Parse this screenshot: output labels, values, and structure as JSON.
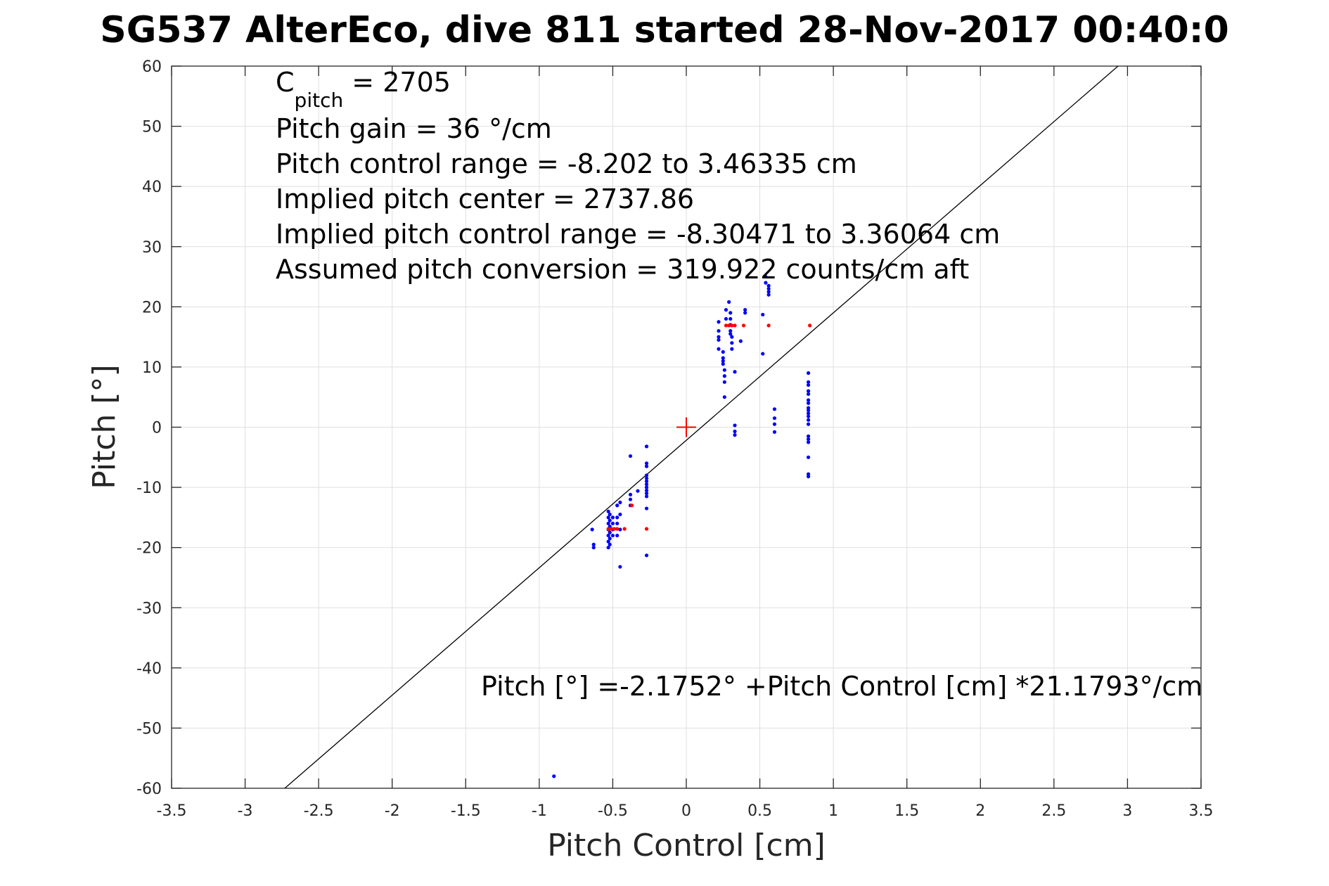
{
  "chart_data": {
    "type": "scatter",
    "title": "SG537 AlterEco, dive 811 started 28-Nov-2017 00:40:0",
    "xlabel": "Pitch Control [cm]",
    "ylabel": "Pitch [°]",
    "xlim": [
      -3.5,
      3.5
    ],
    "ylim": [
      -60,
      60
    ],
    "xticks": [
      -3.5,
      -3,
      -2.5,
      -2,
      -1.5,
      -1,
      -0.5,
      0,
      0.5,
      1,
      1.5,
      2,
      2.5,
      3,
      3.5
    ],
    "xtick_labels": [
      "-3.5",
      "-3",
      "-2.5",
      "-2",
      "-1.5",
      "-1",
      "-0.5",
      "0",
      "0.5",
      "1",
      "1.5",
      "2",
      "2.5",
      "3",
      "3.5"
    ],
    "yticks": [
      -60,
      -50,
      -40,
      -30,
      -20,
      -10,
      0,
      10,
      20,
      30,
      40,
      50,
      60
    ],
    "ytick_labels": [
      "-60",
      "-50",
      "-40",
      "-30",
      "-20",
      "-10",
      "0",
      "10",
      "20",
      "30",
      "40",
      "50",
      "60"
    ],
    "grid": true,
    "annotations": {
      "c_pitch_main": "C",
      "c_pitch_sub": "pitch",
      "c_pitch_value": " = 2705",
      "lines": [
        "Pitch gain = 36 °/cm",
        "Pitch control range = -8.202 to 3.46335 cm",
        "Implied pitch center = 2737.86",
        "Implied pitch control range = -8.30471 to 3.36064 cm",
        "Assumed pitch conversion = 319.922 counts/cm aft"
      ],
      "fit_equation": "Pitch [°] =-2.1752° +Pitch Control [cm] *21.1793°/cm"
    },
    "fit_line": {
      "intercept": -2.1752,
      "slope": 21.1793,
      "color": "#000000"
    },
    "center_marker": {
      "x": 0,
      "y": 0,
      "color": "#ff0000"
    },
    "series": [
      {
        "color": "#0000ff",
        "points": [
          [
            -0.9,
            -58
          ],
          [
            -0.63,
            -19.5
          ],
          [
            -0.63,
            -20
          ],
          [
            -0.64,
            -17
          ],
          [
            -0.53,
            -14
          ],
          [
            -0.53,
            -15
          ],
          [
            -0.53,
            -16
          ],
          [
            -0.53,
            -17
          ],
          [
            -0.53,
            -18
          ],
          [
            -0.53,
            -19
          ],
          [
            -0.53,
            -20
          ],
          [
            -0.52,
            -14.5
          ],
          [
            -0.52,
            -15.5
          ],
          [
            -0.52,
            -16.5
          ],
          [
            -0.52,
            -17.5
          ],
          [
            -0.52,
            -18.5
          ],
          [
            -0.52,
            -19.5
          ],
          [
            -0.5,
            -15
          ],
          [
            -0.5,
            -16
          ],
          [
            -0.5,
            -17
          ],
          [
            -0.5,
            -18
          ],
          [
            -0.47,
            -13
          ],
          [
            -0.47,
            -15
          ],
          [
            -0.47,
            -16
          ],
          [
            -0.47,
            -18
          ],
          [
            -0.45,
            -12.5
          ],
          [
            -0.45,
            -14.5
          ],
          [
            -0.45,
            -17
          ],
          [
            -0.45,
            -23.2
          ],
          [
            -0.38,
            -4.8
          ],
          [
            -0.38,
            -11.2
          ],
          [
            -0.38,
            -12
          ],
          [
            -0.38,
            -13
          ],
          [
            -0.33,
            -10.6
          ],
          [
            -0.27,
            -3.2
          ],
          [
            -0.27,
            -6
          ],
          [
            -0.27,
            -6.5
          ],
          [
            -0.27,
            -8
          ],
          [
            -0.27,
            -8.5
          ],
          [
            -0.27,
            -9
          ],
          [
            -0.27,
            -9.5
          ],
          [
            -0.27,
            -10
          ],
          [
            -0.27,
            -10.5
          ],
          [
            -0.27,
            -11
          ],
          [
            -0.27,
            -11.5
          ],
          [
            -0.27,
            -13.5
          ],
          [
            -0.27,
            -21.3
          ],
          [
            0.22,
            17.5
          ],
          [
            0.22,
            16
          ],
          [
            0.22,
            15
          ],
          [
            0.22,
            14.5
          ],
          [
            0.22,
            13
          ],
          [
            0.25,
            12.5
          ],
          [
            0.25,
            11.5
          ],
          [
            0.25,
            11
          ],
          [
            0.25,
            10.5
          ],
          [
            0.26,
            9.5
          ],
          [
            0.26,
            8.5
          ],
          [
            0.26,
            7.5
          ],
          [
            0.26,
            5
          ],
          [
            0.27,
            19.5
          ],
          [
            0.27,
            18
          ],
          [
            0.29,
            20.8
          ],
          [
            0.3,
            19
          ],
          [
            0.3,
            18
          ],
          [
            0.3,
            17
          ],
          [
            0.3,
            16
          ],
          [
            0.3,
            15.5
          ],
          [
            0.31,
            15
          ],
          [
            0.31,
            14
          ],
          [
            0.31,
            13
          ],
          [
            0.33,
            9.2
          ],
          [
            0.33,
            0.3
          ],
          [
            0.33,
            -0.7
          ],
          [
            0.33,
            -1.3
          ],
          [
            0.37,
            14.3
          ],
          [
            0.4,
            19.5
          ],
          [
            0.4,
            19
          ],
          [
            0.52,
            18.7
          ],
          [
            0.52,
            12.2
          ],
          [
            0.54,
            25
          ],
          [
            0.54,
            24
          ],
          [
            0.56,
            23.5
          ],
          [
            0.56,
            23
          ],
          [
            0.56,
            22.5
          ],
          [
            0.56,
            22
          ],
          [
            0.6,
            3
          ],
          [
            0.6,
            1.5
          ],
          [
            0.6,
            0.5
          ],
          [
            0.6,
            -0.8
          ],
          [
            0.83,
            9
          ],
          [
            0.83,
            7.5
          ],
          [
            0.83,
            7
          ],
          [
            0.83,
            6
          ],
          [
            0.83,
            5.5
          ],
          [
            0.83,
            4.5
          ],
          [
            0.83,
            4
          ],
          [
            0.83,
            3.2
          ],
          [
            0.83,
            2.8
          ],
          [
            0.83,
            2.3
          ],
          [
            0.83,
            1.8
          ],
          [
            0.83,
            1.2
          ],
          [
            0.83,
            0.5
          ],
          [
            0.83,
            -1.5
          ],
          [
            0.83,
            -2
          ],
          [
            0.83,
            -2.5
          ],
          [
            0.83,
            -5
          ],
          [
            0.83,
            -7.8
          ],
          [
            0.83,
            -8.2
          ]
        ]
      },
      {
        "color": "#ff0000",
        "points": [
          [
            -0.53,
            -16.9
          ],
          [
            -0.51,
            -16.9
          ],
          [
            -0.49,
            -16.9
          ],
          [
            -0.47,
            -16.9
          ],
          [
            -0.42,
            -16.9
          ],
          [
            -0.27,
            -16.9
          ],
          [
            -0.37,
            -13
          ],
          [
            0.27,
            16.9
          ],
          [
            0.29,
            16.9
          ],
          [
            0.31,
            16.9
          ],
          [
            0.33,
            16.9
          ],
          [
            0.39,
            16.9
          ],
          [
            0.56,
            16.9
          ],
          [
            0.84,
            16.9
          ]
        ]
      }
    ]
  }
}
